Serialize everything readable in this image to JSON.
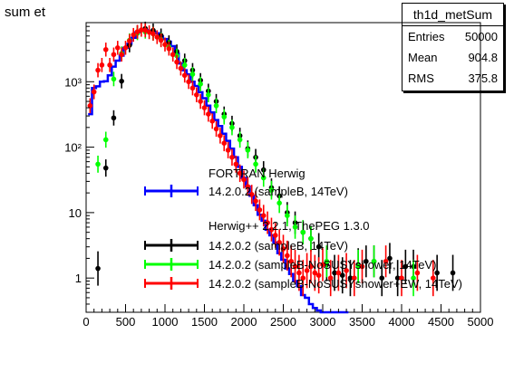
{
  "window": {
    "title": "sum et"
  },
  "stats": {
    "name": "th1d_metSum",
    "entries_label": "Entries",
    "entries": "50000",
    "mean_label": "Mean",
    "mean": "904.8",
    "rms_label": "RMS",
    "rms": "375.8"
  },
  "legend": {
    "header1": "FORTRAN Herwig",
    "header2": "Herwig++ 2.2.1, ThePEG 1.3.0"
  },
  "chart_data": {
    "type": "line",
    "title": "sum et",
    "xlabel": "",
    "ylabel": "",
    "xlim": [
      0,
      5000
    ],
    "ylim": [
      0.3,
      8000
    ],
    "yscale": "log",
    "grid": false,
    "legend_placement": "center",
    "x_ticks": [
      0,
      500,
      1000,
      1500,
      2000,
      2500,
      3000,
      3500,
      4000,
      4500,
      5000
    ],
    "x_tick_labels": [
      "0",
      "500",
      "1000",
      "1500",
      "2000",
      "2500",
      "3000",
      "3500",
      "4000",
      "4500",
      "5000"
    ],
    "y_ticks": [
      1,
      10,
      100,
      1000
    ],
    "y_tick_labels": [
      "1",
      "10",
      "10²",
      "10³"
    ],
    "series": [
      {
        "name": "14.2.0.2 (sampleB, 14TeV)",
        "color": "#0000ff",
        "style": "histogram",
        "x": [
          50,
          100,
          150,
          200,
          250,
          300,
          350,
          400,
          450,
          500,
          550,
          600,
          650,
          700,
          750,
          800,
          850,
          900,
          950,
          1000,
          1050,
          1100,
          1150,
          1200,
          1250,
          1300,
          1350,
          1400,
          1450,
          1500,
          1550,
          1600,
          1650,
          1700,
          1750,
          1800,
          1850,
          1900,
          1950,
          2000,
          2050,
          2100,
          2150,
          2200,
          2250,
          2300,
          2350,
          2400,
          2450,
          2500,
          2550,
          2600,
          2650,
          2700,
          2750,
          2800,
          2850,
          2900,
          2950,
          3000,
          3050,
          3100,
          3150,
          3200,
          3250,
          3300
        ],
        "y": [
          320,
          800,
          850,
          1000,
          1020,
          1250,
          1700,
          2100,
          2500,
          3300,
          3800,
          4700,
          5700,
          6000,
          6200,
          6000,
          5800,
          5500,
          4900,
          4500,
          4100,
          3500,
          2700,
          1900,
          1500,
          1300,
          1000,
          860,
          690,
          560,
          430,
          340,
          260,
          210,
          160,
          125,
          95,
          70,
          50,
          34,
          25,
          18,
          13,
          9.3,
          7.5,
          5.5,
          4.5,
          3.5,
          2.4,
          1.9,
          1.4,
          1.15,
          0.9,
          0.75,
          0.55,
          0.5,
          0.4,
          0.35,
          0.32,
          0.3,
          0.28,
          0.27,
          0.26,
          0.25,
          0.25,
          0.25
        ]
      },
      {
        "name": "14.2.0.2 (sampleB, 14TeV)",
        "color": "#000000",
        "style": "points",
        "x": [
          150,
          250,
          350,
          450,
          550,
          650,
          750,
          850,
          950,
          1050,
          1150,
          1250,
          1350,
          1450,
          1550,
          1650,
          1750,
          1850,
          1950,
          2050,
          2150,
          2250,
          2350,
          2450,
          2550,
          2650,
          2750,
          2850,
          2950,
          3050,
          3150,
          3250,
          3350,
          3450,
          3550,
          3650,
          3750,
          3850,
          3950,
          4050,
          4150,
          4450,
          4650
        ],
        "y": [
          1.4,
          48,
          280,
          1020,
          3600,
          5700,
          6500,
          6100,
          5100,
          4000,
          2900,
          2100,
          1500,
          1050,
          720,
          500,
          320,
          230,
          150,
          95,
          70,
          45,
          24,
          18,
          10,
          7,
          5,
          4,
          3,
          1.6,
          1.2,
          1.1,
          1,
          1.6,
          1.8,
          1.8,
          1,
          2,
          1,
          1.5,
          1.5,
          1.2,
          1.2
        ]
      },
      {
        "name": "14.2.0.2 (sampleB-NoSUSYshower, 14TeV)",
        "color": "#00ff00",
        "style": "points",
        "x": [
          150,
          250,
          350,
          450,
          550,
          650,
          750,
          850,
          950,
          1050,
          1150,
          1250,
          1350,
          1450,
          1550,
          1650,
          1750,
          1850,
          1950,
          2050,
          2150,
          2250,
          2350,
          2450,
          2550,
          2650,
          2750,
          2850,
          3050,
          3450,
          3650,
          4150
        ],
        "y": [
          55,
          130,
          1100,
          2700,
          4300,
          5500,
          5800,
          5400,
          4400,
          3400,
          2500,
          1800,
          1300,
          920,
          630,
          430,
          290,
          200,
          130,
          90,
          55,
          34,
          22,
          14,
          9,
          6,
          5,
          4,
          1.8,
          1.5,
          1.8,
          1
        ]
      },
      {
        "name": "14.2.0.2 (sampleB-NoSUSYshower+EW, 14TeV)",
        "color": "#ff0000",
        "style": "points",
        "x": [
          50,
          100,
          150,
          200,
          250,
          300,
          350,
          400,
          450,
          500,
          550,
          600,
          650,
          700,
          750,
          800,
          850,
          900,
          950,
          1000,
          1050,
          1100,
          1150,
          1200,
          1250,
          1300,
          1350,
          1400,
          1450,
          1500,
          1550,
          1600,
          1650,
          1700,
          1750,
          1800,
          1850,
          1900,
          1950,
          2000,
          2050,
          2100,
          2150,
          2200,
          2250,
          2300,
          2350,
          2400,
          2450,
          2500,
          2550,
          2600,
          2650,
          2700,
          2750,
          2800,
          2850,
          2900,
          2950,
          3000,
          3100,
          3200,
          3300,
          3400,
          3500,
          3800,
          4000,
          4200,
          4400
        ],
        "y": [
          430,
          700,
          1500,
          1800,
          3100,
          1800,
          2600,
          3300,
          2600,
          3300,
          4200,
          5200,
          5800,
          6200,
          6100,
          5700,
          5400,
          4800,
          4300,
          3700,
          3200,
          2600,
          2000,
          1600,
          1250,
          1000,
          800,
          630,
          500,
          400,
          320,
          250,
          190,
          150,
          115,
          90,
          70,
          55,
          40,
          32,
          25,
          19,
          15,
          11,
          9,
          7,
          5.5,
          4.5,
          3.5,
          2.8,
          2.2,
          1.8,
          1.5,
          1.2,
          1,
          1.3,
          1.5,
          1.2,
          1.1,
          1.6,
          1,
          1.2,
          1.3,
          1,
          1.5,
          1.8,
          1,
          1.2,
          1
        ]
      }
    ]
  }
}
